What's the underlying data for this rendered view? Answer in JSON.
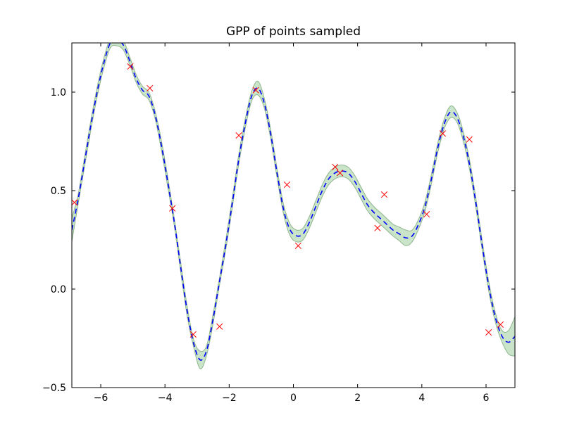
{
  "chart_data": {
    "type": "line",
    "title": "GPP of points sampled",
    "xlabel": "",
    "ylabel": "",
    "xlim": [
      -6.9,
      6.9
    ],
    "ylim": [
      -0.5,
      1.25
    ],
    "xticks": [
      -6,
      -4,
      -2,
      0,
      2,
      4,
      6
    ],
    "yticks": [
      -0.5,
      0.0,
      0.5,
      1.0
    ],
    "xtick_labels": [
      "−6",
      "−4",
      "−2",
      "0",
      "2",
      "4",
      "6"
    ],
    "ytick_labels": [
      "−0.5",
      "0.0",
      "0.5",
      "1.0"
    ],
    "grid": false,
    "legend": "none",
    "colors": {
      "mean": "#0000ff",
      "band_fill": "#88c488",
      "band_edge": "#5a8f5a",
      "samples": "#ff0000",
      "axes": "#000000"
    },
    "series": [
      {
        "role": "mean",
        "style": "dashed",
        "x": [
          -6.9,
          -6.7,
          -6.5,
          -6.3,
          -6.1,
          -5.9,
          -5.7,
          -5.5,
          -5.3,
          -5.1,
          -4.9,
          -4.7,
          -4.5,
          -4.3,
          -4.1,
          -3.9,
          -3.7,
          -3.5,
          -3.3,
          -3.1,
          -2.9,
          -2.7,
          -2.5,
          -2.3,
          -2.1,
          -1.9,
          -1.7,
          -1.5,
          -1.3,
          -1.1,
          -0.9,
          -0.7,
          -0.5,
          -0.3,
          -0.1,
          0.1,
          0.3,
          0.5,
          0.7,
          0.9,
          1.1,
          1.3,
          1.5,
          1.7,
          1.9,
          2.1,
          2.3,
          2.5,
          2.7,
          2.9,
          3.1,
          3.3,
          3.5,
          3.7,
          3.9,
          4.1,
          4.3,
          4.5,
          4.7,
          4.9,
          5.1,
          5.3,
          5.5,
          5.7,
          5.9,
          6.1,
          6.3,
          6.5,
          6.7,
          6.9
        ],
        "y": [
          0.3,
          0.46,
          0.65,
          0.84,
          1.01,
          1.15,
          1.25,
          1.26,
          1.24,
          1.16,
          1.07,
          1.01,
          0.98,
          0.88,
          0.72,
          0.53,
          0.33,
          0.1,
          -0.12,
          -0.28,
          -0.36,
          -0.31,
          -0.15,
          0.04,
          0.23,
          0.44,
          0.66,
          0.84,
          0.98,
          1.02,
          0.94,
          0.78,
          0.58,
          0.4,
          0.3,
          0.27,
          0.28,
          0.34,
          0.42,
          0.5,
          0.56,
          0.59,
          0.6,
          0.59,
          0.55,
          0.49,
          0.43,
          0.39,
          0.36,
          0.33,
          0.3,
          0.28,
          0.26,
          0.27,
          0.33,
          0.42,
          0.56,
          0.72,
          0.84,
          0.9,
          0.87,
          0.77,
          0.62,
          0.42,
          0.2,
          0.0,
          -0.15,
          -0.24,
          -0.27,
          -0.24
        ]
      },
      {
        "role": "confidence-band",
        "style": "filled",
        "x": [
          -6.9,
          -6.7,
          -6.5,
          -6.3,
          -6.1,
          -5.9,
          -5.7,
          -5.5,
          -5.3,
          -5.1,
          -4.9,
          -4.7,
          -4.5,
          -4.3,
          -4.1,
          -3.9,
          -3.7,
          -3.5,
          -3.3,
          -3.1,
          -2.9,
          -2.7,
          -2.5,
          -2.3,
          -2.1,
          -1.9,
          -1.7,
          -1.5,
          -1.3,
          -1.1,
          -0.9,
          -0.7,
          -0.5,
          -0.3,
          -0.1,
          0.1,
          0.3,
          0.5,
          0.7,
          0.9,
          1.1,
          1.3,
          1.5,
          1.7,
          1.9,
          2.1,
          2.3,
          2.5,
          2.7,
          2.9,
          3.1,
          3.3,
          3.5,
          3.7,
          3.9,
          4.1,
          4.3,
          4.5,
          4.7,
          4.9,
          5.1,
          5.3,
          5.5,
          5.7,
          5.9,
          6.1,
          6.3,
          6.5,
          6.7,
          6.9
        ],
        "half_width": [
          0.06,
          0.025,
          0.025,
          0.025,
          0.025,
          0.025,
          0.025,
          0.025,
          0.025,
          0.02,
          0.02,
          0.02,
          0.02,
          0.02,
          0.025,
          0.025,
          0.02,
          0.025,
          0.025,
          0.02,
          0.045,
          0.025,
          0.025,
          0.02,
          0.025,
          0.025,
          0.025,
          0.025,
          0.025,
          0.035,
          0.025,
          0.025,
          0.025,
          0.025,
          0.03,
          0.03,
          0.03,
          0.03,
          0.03,
          0.03,
          0.03,
          0.03,
          0.03,
          0.03,
          0.03,
          0.03,
          0.03,
          0.03,
          0.03,
          0.03,
          0.03,
          0.035,
          0.04,
          0.03,
          0.025,
          0.025,
          0.025,
          0.025,
          0.025,
          0.03,
          0.025,
          0.025,
          0.025,
          0.025,
          0.025,
          0.025,
          0.025,
          0.03,
          0.06,
          0.1
        ]
      }
    ],
    "samples": {
      "marker": "x",
      "x": [
        -6.82,
        -5.08,
        -4.47,
        -3.77,
        -3.12,
        -2.3,
        -1.7,
        -1.17,
        -0.2,
        0.15,
        1.3,
        1.45,
        2.62,
        2.83,
        4.15,
        4.65,
        5.48,
        6.08,
        6.45
      ],
      "y": [
        0.44,
        1.13,
        1.02,
        0.41,
        -0.23,
        -0.19,
        0.78,
        1.01,
        0.53,
        0.22,
        0.62,
        0.59,
        0.31,
        0.48,
        0.38,
        0.79,
        0.76,
        -0.22,
        -0.18
      ]
    }
  }
}
